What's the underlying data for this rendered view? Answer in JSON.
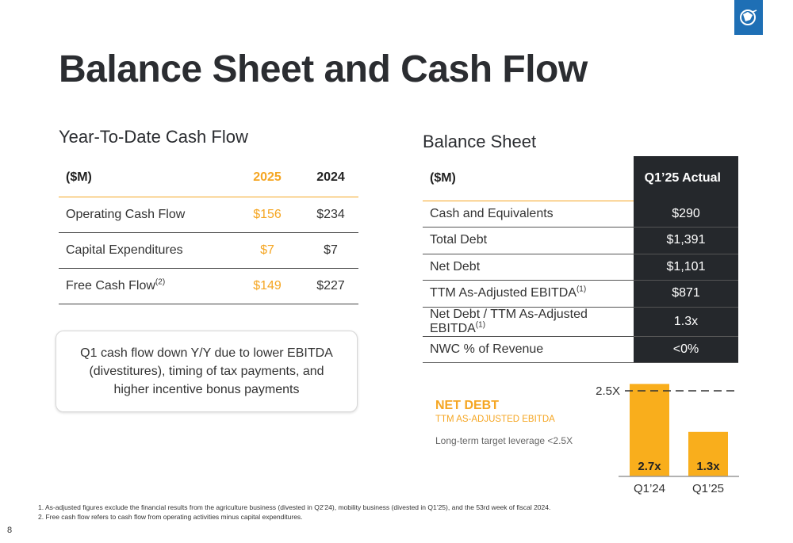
{
  "title": "Balance Sheet and Cash Flow",
  "cash_flow": {
    "section_title": "Year-To-Date Cash Flow",
    "header": {
      "label": "($M)",
      "col1": "2025",
      "col2": "2024"
    },
    "rows": [
      {
        "label": "Operating Cash Flow",
        "sup": "",
        "v2025": "$156",
        "v2024": "$234"
      },
      {
        "label": "Capital Expenditures",
        "sup": "",
        "v2025": "$7",
        "v2024": "$7"
      },
      {
        "label": "Free Cash Flow",
        "sup": "(2)",
        "v2025": "$149",
        "v2024": "$227"
      }
    ],
    "callout": "Q1 cash flow down Y/Y due to lower EBITDA (divestitures), timing of tax payments, and higher incentive bonus payments"
  },
  "balance_sheet": {
    "section_title": "Balance Sheet",
    "header": {
      "label": "($M)",
      "value": "Q1’25 Actual"
    },
    "rows": [
      {
        "label": "Cash and Equivalents",
        "sup": "",
        "value": "$290"
      },
      {
        "label": "Total Debt",
        "sup": "",
        "value": "$1,391"
      },
      {
        "label": "Net Debt",
        "sup": "",
        "value": "$1,101"
      },
      {
        "label": "TTM As-Adjusted EBITDA",
        "sup": "(1)",
        "value": "$871"
      },
      {
        "label": "Net Debt / TTM As-Adjusted EBITDA",
        "sup": "(1)",
        "value": "1.3x"
      },
      {
        "label": "NWC % of Revenue",
        "sup": "",
        "value": "<0%"
      }
    ]
  },
  "net_debt": {
    "title": "NET DEBT",
    "subtitle": "TTM AS-ADJUSTED EBITDA",
    "note": "Long-term target leverage <2.5X"
  },
  "chart_data": {
    "type": "bar",
    "categories": [
      "Q1’24",
      "Q1’25"
    ],
    "values": [
      2.7,
      1.3
    ],
    "value_labels": [
      "2.7x",
      "1.3x"
    ],
    "target_line": {
      "value": 2.5,
      "label": "2.5X"
    },
    "ylim": [
      0,
      2.8
    ],
    "bar_color": "#f9ae1c"
  },
  "footnotes": [
    "1.  As-adjusted figures exclude the financial results from the agriculture business (divested in Q2’24), mobility business (divested in Q1’25), and the 53rd week of fiscal 2024.",
    "2.  Free cash flow refers to cash flow from operating activities minus capital expenditures."
  ],
  "page_number": "8",
  "colors": {
    "accent": "#f5a623",
    "dark": "#25282c",
    "brand_blue": "#1e6fb5"
  }
}
